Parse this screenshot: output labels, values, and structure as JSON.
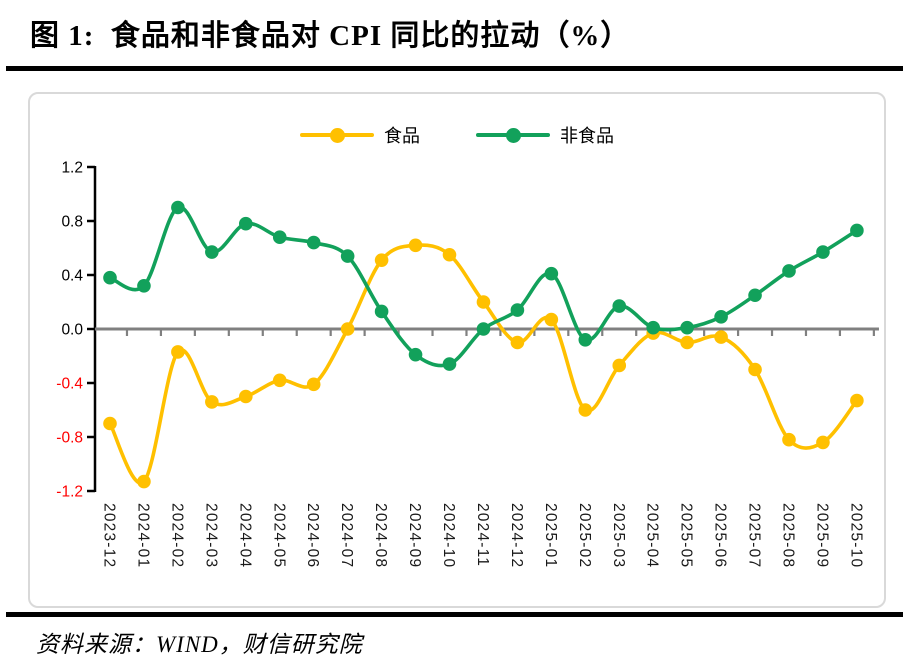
{
  "header": {
    "title": "图 1:  食品和非食品对 CPI 同比的拉动（%）"
  },
  "footer": {
    "source": "资料来源：WIND，财信研究院"
  },
  "chart_data": {
    "type": "line",
    "title": "食品和非食品对 CPI 同比的拉动（%）",
    "xlabel": "",
    "ylabel": "",
    "categories": [
      "2023-12",
      "2024-01",
      "2024-02",
      "2024-03",
      "2024-04",
      "2024-05",
      "2024-06",
      "2024-07",
      "2024-08",
      "2024-09",
      "2024-10",
      "2024-11",
      "2024-12",
      "2025-01",
      "2025-02",
      "2025-03",
      "2025-04",
      "2025-05",
      "2025-06",
      "2025-07",
      "2025-08",
      "2025-09",
      "2025-10"
    ],
    "series": [
      {
        "name": "食品",
        "color": "#FFC000",
        "values": [
          -0.7,
          -1.13,
          -0.17,
          -0.54,
          -0.5,
          -0.38,
          -0.41,
          0.0,
          0.51,
          0.62,
          0.55,
          0.2,
          -0.1,
          0.07,
          -0.6,
          -0.27,
          -0.03,
          -0.1,
          -0.06,
          -0.3,
          -0.82,
          -0.84,
          -0.53
        ]
      },
      {
        "name": "非食品",
        "color": "#12A15B",
        "values": [
          0.38,
          0.32,
          0.9,
          0.57,
          0.78,
          0.68,
          0.64,
          0.54,
          0.13,
          -0.19,
          -0.26,
          0.0,
          0.14,
          0.41,
          -0.08,
          0.17,
          0.01,
          0.01,
          0.09,
          0.25,
          0.43,
          0.57,
          0.73
        ]
      }
    ],
    "ylim": [
      -1.2,
      1.2
    ],
    "yticks": [
      1.2,
      0.8,
      0.4,
      0.0,
      -0.4,
      -0.8,
      -1.2
    ],
    "ytick_format_decimals": 1,
    "grid": false,
    "smooth_lines": true,
    "legend_position": "top-center",
    "marker_radius": 6.8,
    "line_width": 3.6,
    "colors": {
      "axis": "#000000",
      "zero_line": "#808080",
      "tick_label": "#000000",
      "negative_tick_label": "#FF0000",
      "x_tick_label": "#1a1a1a"
    }
  }
}
